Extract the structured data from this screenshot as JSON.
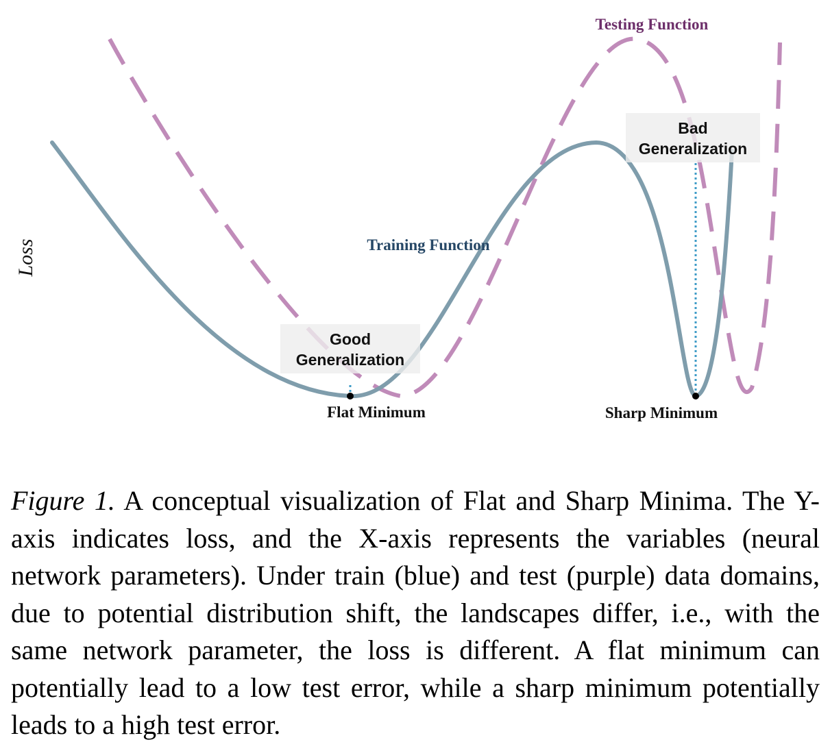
{
  "figure": {
    "y_axis_label": "Loss",
    "testing_label": "Testing Function",
    "training_label": "Training Function",
    "good_box": {
      "line1": "Good",
      "line2": "Generalization"
    },
    "bad_box": {
      "line1": "Bad",
      "line2": "Generalization"
    },
    "flat_minimum_label": "Flat Minimum",
    "sharp_minimum_label": "Sharp Minimum",
    "colors": {
      "training": "#7f9dac",
      "testing": "#c08bb9",
      "training_label": "#264766",
      "testing_label": "#6d2f6a",
      "dotted_marker": "#3e9bc7",
      "label_box": "#eeeeee"
    }
  },
  "caption": {
    "figure_number": "Figure 1.",
    "text": "A conceptual visualization of Flat and Sharp Minima. The Y-axis indicates loss, and the X-axis represents the variables (neural network parameters). Under train (blue) and test (purple) data domains, due to potential distribution shift, the landscapes differ, i.e., with the same network parameter, the loss is different. A flat minimum can potentially lead to a low test error, while a sharp minimum potentially leads to a high test error."
  }
}
